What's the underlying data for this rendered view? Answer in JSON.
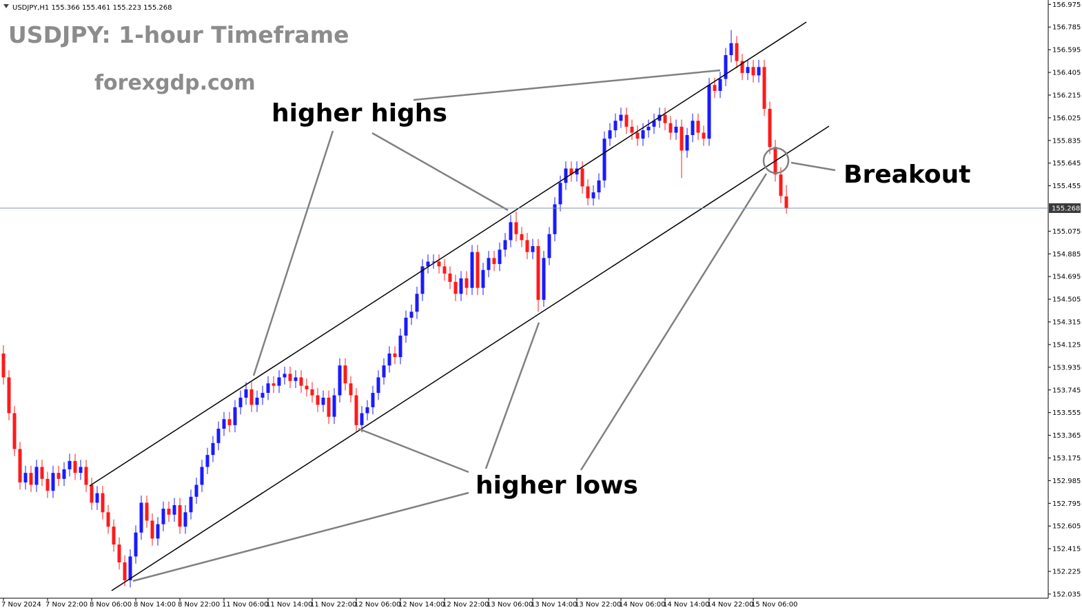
{
  "chart_data": {
    "type": "candlestick",
    "symbol": "USDJPY,H1",
    "annotations": [
      "USDJPY: 1-hour Timeframe",
      "forexgdp.com",
      "higher highs",
      "higher lows",
      "Breakout"
    ],
    "up_color": "#1a1aff",
    "down_color": "#ff1a1a",
    "ylim": [
      152.0,
      157.0
    ],
    "yticks": [
      156.975,
      156.785,
      156.595,
      156.405,
      156.215,
      156.025,
      155.835,
      155.645,
      155.455,
      155.075,
      154.885,
      154.695,
      154.505,
      154.315,
      154.125,
      153.935,
      153.745,
      153.555,
      153.365,
      153.175,
      152.985,
      152.795,
      152.605,
      152.415,
      152.225,
      152.035
    ],
    "categories": [
      "7 Nov 2024",
      null,
      null,
      null,
      null,
      null,
      null,
      null,
      "7 Nov 22:00",
      null,
      null,
      null,
      null,
      null,
      null,
      null,
      "8 Nov 06:00",
      null,
      null,
      null,
      null,
      null,
      null,
      null,
      "8 Nov 14:00",
      null,
      null,
      null,
      null,
      null,
      null,
      null,
      "8 Nov 22:00",
      null,
      null,
      null,
      null,
      null,
      null,
      null,
      "11 Nov 06:00",
      null,
      null,
      null,
      null,
      null,
      null,
      null,
      "11 Nov 14:00",
      null,
      null,
      null,
      null,
      null,
      null,
      null,
      "11 Nov 22:00",
      null,
      null,
      null,
      null,
      null,
      null,
      null,
      "12 Nov 06:00",
      null,
      null,
      null,
      null,
      null,
      null,
      null,
      "12 Nov 14:00",
      null,
      null,
      null,
      null,
      null,
      null,
      null,
      "12 Nov 22:00",
      null,
      null,
      null,
      null,
      null,
      null,
      null,
      "13 Nov 06:00",
      null,
      null,
      null,
      null,
      null,
      null,
      null,
      "13 Nov 14:00",
      null,
      null,
      null,
      null,
      null,
      null,
      null,
      "13 Nov 22:00",
      null,
      null,
      null,
      null,
      null,
      null,
      null,
      "14 Nov 06:00",
      null,
      null,
      null,
      null,
      null,
      null,
      null,
      "14 Nov 14:00",
      null,
      null,
      null,
      null,
      null,
      null,
      null,
      "14 Nov 22:00",
      null,
      null,
      null,
      null,
      null,
      null,
      null,
      "15 Nov 06:00",
      null,
      null,
      null,
      null,
      null,
      null
    ],
    "open": [
      154.05,
      153.85,
      153.55,
      153.25,
      152.97,
      153.05,
      152.95,
      153.1,
      153.0,
      152.9,
      153.05,
      153.0,
      153.08,
      153.15,
      153.05,
      153.1,
      152.95,
      152.8,
      152.88,
      152.72,
      152.6,
      152.45,
      152.3,
      152.15,
      152.35,
      152.55,
      152.8,
      152.65,
      152.5,
      152.62,
      152.75,
      152.7,
      152.78,
      152.6,
      152.72,
      152.85,
      152.95,
      153.1,
      153.2,
      153.3,
      153.42,
      153.5,
      153.45,
      153.6,
      153.68,
      153.75,
      153.62,
      153.68,
      153.72,
      153.8,
      153.78,
      153.85,
      153.88,
      153.82,
      153.85,
      153.78,
      153.75,
      153.7,
      153.62,
      153.68,
      153.52,
      153.7,
      153.95,
      153.8,
      153.7,
      153.45,
      153.55,
      153.6,
      153.72,
      153.85,
      153.95,
      154.05,
      154.02,
      154.2,
      154.35,
      154.4,
      154.55,
      154.78,
      154.82,
      154.82,
      154.78,
      154.72,
      154.65,
      154.55,
      154.68,
      154.6,
      154.9,
      154.6,
      154.75,
      154.85,
      154.8,
      154.92,
      155.0,
      155.15,
      155.05,
      155.0,
      154.9,
      154.95,
      154.5,
      154.85,
      155.05,
      155.3,
      155.48,
      155.6,
      155.55,
      155.6,
      155.45,
      155.35,
      155.4,
      155.5,
      155.85,
      155.92,
      156.0,
      156.05,
      155.95,
      155.9,
      155.85,
      155.92,
      155.95,
      156.0,
      156.05,
      155.98,
      155.9,
      155.95,
      155.75,
      155.88,
      156.0,
      155.9,
      155.85,
      156.3,
      156.25,
      156.35,
      156.55,
      156.65,
      156.5,
      156.4,
      156.45,
      156.38,
      156.45,
      156.1,
      155.78,
      155.55,
      155.366
    ],
    "high": [
      154.12,
      153.91,
      153.61,
      153.31,
      153.11,
      153.11,
      153.16,
      153.16,
      153.06,
      153.11,
      153.11,
      153.14,
      153.21,
      153.21,
      153.16,
      153.16,
      153.01,
      152.94,
      152.94,
      152.78,
      152.66,
      152.51,
      152.36,
      152.41,
      152.61,
      152.86,
      152.86,
      152.71,
      152.68,
      152.81,
      152.81,
      152.84,
      152.84,
      152.78,
      152.91,
      153.01,
      153.16,
      153.26,
      153.36,
      153.48,
      153.56,
      153.56,
      153.66,
      153.74,
      153.81,
      153.81,
      153.74,
      153.78,
      153.86,
      153.86,
      153.91,
      153.94,
      153.94,
      153.91,
      153.91,
      153.84,
      153.81,
      153.76,
      153.74,
      153.74,
      153.76,
      154.01,
      154.01,
      153.86,
      153.76,
      153.61,
      153.66,
      153.78,
      153.91,
      154.01,
      154.11,
      154.11,
      154.26,
      154.41,
      154.46,
      154.61,
      154.84,
      154.88,
      154.88,
      154.88,
      154.84,
      154.78,
      154.71,
      154.74,
      154.74,
      154.96,
      154.96,
      154.81,
      154.91,
      154.91,
      154.98,
      155.06,
      155.21,
      155.24,
      155.11,
      155.06,
      155.01,
      155.01,
      154.91,
      155.11,
      155.36,
      155.54,
      155.66,
      155.66,
      155.66,
      155.66,
      155.51,
      155.46,
      155.56,
      155.91,
      155.98,
      156.06,
      156.11,
      156.11,
      156.01,
      155.96,
      155.98,
      156.01,
      156.06,
      156.11,
      156.11,
      156.04,
      156.01,
      156.01,
      155.94,
      156.06,
      156.06,
      155.96,
      156.36,
      156.36,
      156.41,
      156.61,
      156.76,
      156.71,
      156.56,
      156.51,
      156.51,
      156.51,
      156.51,
      156.16,
      155.84,
      155.61,
      155.461
    ],
    "low": [
      153.79,
      153.49,
      153.19,
      152.91,
      152.91,
      152.89,
      152.89,
      152.94,
      152.84,
      152.84,
      152.94,
      152.94,
      153.02,
      152.99,
      152.99,
      152.89,
      152.74,
      152.74,
      152.66,
      152.54,
      152.39,
      152.24,
      152.1,
      152.09,
      152.29,
      152.49,
      152.59,
      152.44,
      152.44,
      152.56,
      152.64,
      152.64,
      152.54,
      152.54,
      152.66,
      152.79,
      152.89,
      153.04,
      153.14,
      153.24,
      153.36,
      153.39,
      153.39,
      153.54,
      153.62,
      153.56,
      153.56,
      153.62,
      153.66,
      153.72,
      153.72,
      153.79,
      153.76,
      153.76,
      153.72,
      153.69,
      153.64,
      153.56,
      153.56,
      153.46,
      153.46,
      153.64,
      153.74,
      153.64,
      153.39,
      153.39,
      153.49,
      153.54,
      153.66,
      153.79,
      153.89,
      153.96,
      153.96,
      154.14,
      154.29,
      154.34,
      154.49,
      154.72,
      154.76,
      154.72,
      154.66,
      154.59,
      154.49,
      154.49,
      154.54,
      154.54,
      154.54,
      154.54,
      154.69,
      154.74,
      154.74,
      154.86,
      154.94,
      154.99,
      154.94,
      154.84,
      154.84,
      154.4,
      154.44,
      154.79,
      154.99,
      155.24,
      155.42,
      155.49,
      155.49,
      155.39,
      155.29,
      155.29,
      155.34,
      155.44,
      155.79,
      155.86,
      155.94,
      155.89,
      155.84,
      155.79,
      155.79,
      155.86,
      155.89,
      155.94,
      155.92,
      155.84,
      155.84,
      155.52,
      155.69,
      155.82,
      155.84,
      155.79,
      155.79,
      156.19,
      156.19,
      156.29,
      156.49,
      156.44,
      156.34,
      156.34,
      156.32,
      156.32,
      156.04,
      155.72,
      155.49,
      155.31,
      155.223
    ],
    "close": [
      153.85,
      153.55,
      153.25,
      152.97,
      153.05,
      152.95,
      153.1,
      153.0,
      152.9,
      153.05,
      153.0,
      153.08,
      153.15,
      153.05,
      153.1,
      152.95,
      152.8,
      152.88,
      152.72,
      152.6,
      152.45,
      152.3,
      152.15,
      152.35,
      152.55,
      152.8,
      152.65,
      152.5,
      152.62,
      152.75,
      152.7,
      152.78,
      152.6,
      152.72,
      152.85,
      152.95,
      153.1,
      153.2,
      153.3,
      153.42,
      153.5,
      153.45,
      153.6,
      153.68,
      153.75,
      153.62,
      153.68,
      153.72,
      153.8,
      153.78,
      153.85,
      153.88,
      153.82,
      153.85,
      153.78,
      153.75,
      153.7,
      153.62,
      153.68,
      153.52,
      153.7,
      153.95,
      153.8,
      153.7,
      153.45,
      153.55,
      153.6,
      153.72,
      153.85,
      153.95,
      154.05,
      154.02,
      154.2,
      154.35,
      154.4,
      154.55,
      154.78,
      154.82,
      154.82,
      154.78,
      154.72,
      154.65,
      154.55,
      154.68,
      154.6,
      154.9,
      154.6,
      154.75,
      154.85,
      154.8,
      154.92,
      155.0,
      155.15,
      155.05,
      155.0,
      154.9,
      154.95,
      154.5,
      154.85,
      155.05,
      155.3,
      155.48,
      155.6,
      155.55,
      155.6,
      155.45,
      155.35,
      155.4,
      155.5,
      155.85,
      155.92,
      156.0,
      156.05,
      155.95,
      155.9,
      155.85,
      155.92,
      155.95,
      156.0,
      156.05,
      155.98,
      155.9,
      155.95,
      155.75,
      155.88,
      156.0,
      155.9,
      155.85,
      156.3,
      156.25,
      156.35,
      156.55,
      156.65,
      156.5,
      156.4,
      156.45,
      156.38,
      156.45,
      156.1,
      155.78,
      155.55,
      155.37,
      155.268
    ]
  }
}
